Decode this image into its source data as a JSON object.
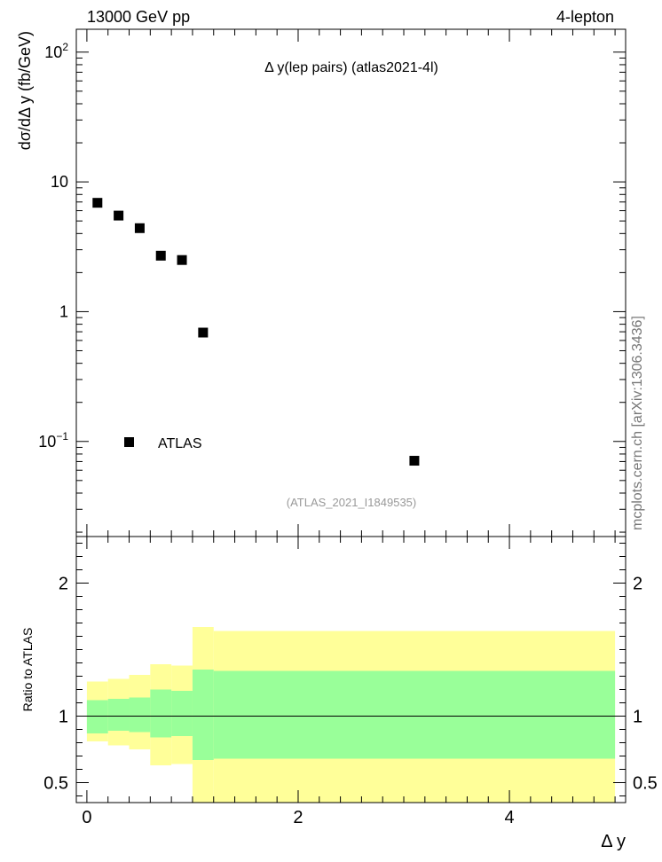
{
  "header": {
    "left": "13000 GeV pp",
    "right": "4-lepton"
  },
  "side_label": "mcplots.cern.ch [arXiv:1306.3436]",
  "chart_data": [
    {
      "type": "scatter",
      "title": "Δ y(lep pairs) (atlas2021-4l)",
      "subtitle": "(ATLAS_2021_I1849535)",
      "xlabel": "Δ y",
      "ylabel": "dσ/dΔ y (fb/GeV)",
      "yscale": "log",
      "xlim": [
        -0.1,
        5.1
      ],
      "ylim": [
        0.0185,
        150
      ],
      "y_tick_labels": [
        "10^-1",
        "1",
        "10",
        "10^2"
      ],
      "legend": {
        "placement": "bottom-left",
        "entries": [
          "ATLAS"
        ]
      },
      "series": [
        {
          "name": "ATLAS",
          "x": [
            0.1,
            0.3,
            0.5,
            0.7,
            0.9,
            1.1,
            3.1
          ],
          "y": [
            6.9,
            5.5,
            4.4,
            2.7,
            2.5,
            0.69,
            0.071
          ]
        }
      ]
    },
    {
      "type": "area",
      "ylabel": "Ratio to ATLAS",
      "xlim": [
        -0.1,
        5.1
      ],
      "ylim": [
        0.35,
        2.35
      ],
      "x_ticks": [
        0,
        2,
        4
      ],
      "y_ticks": [
        0.5,
        1,
        2
      ],
      "reference_line": 1,
      "bands": {
        "edges": [
          0,
          0.2,
          0.4,
          0.6,
          0.8,
          1.0,
          1.2,
          5.0
        ],
        "inner_low": [
          0.87,
          0.89,
          0.88,
          0.84,
          0.85,
          0.67,
          0.68
        ],
        "inner_high": [
          1.12,
          1.13,
          1.14,
          1.2,
          1.19,
          1.35,
          1.34
        ],
        "outer_low": [
          0.81,
          0.78,
          0.75,
          0.63,
          0.64,
          0.35,
          0.35
        ],
        "outer_high": [
          1.26,
          1.28,
          1.31,
          1.39,
          1.38,
          1.67,
          1.64
        ]
      },
      "colors": {
        "inner": "#99ff99",
        "outer": "#ffff99"
      }
    }
  ]
}
